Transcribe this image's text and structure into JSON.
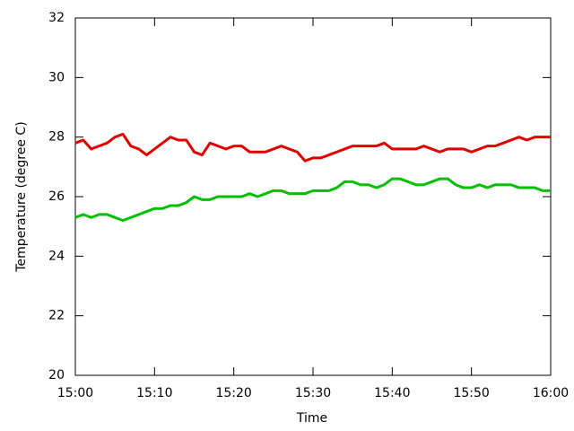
{
  "chart_data": {
    "type": "line",
    "x_label": "Time",
    "y_label": "Temperature (degree C)",
    "x": [
      "15:00",
      "15:01",
      "15:02",
      "15:03",
      "15:04",
      "15:05",
      "15:06",
      "15:07",
      "15:08",
      "15:09",
      "15:10",
      "15:11",
      "15:12",
      "15:13",
      "15:14",
      "15:15",
      "15:16",
      "15:17",
      "15:18",
      "15:19",
      "15:20",
      "15:21",
      "15:22",
      "15:23",
      "15:24",
      "15:25",
      "15:26",
      "15:27",
      "15:28",
      "15:29",
      "15:30",
      "15:31",
      "15:32",
      "15:33",
      "15:34",
      "15:35",
      "15:36",
      "15:37",
      "15:38",
      "15:39",
      "15:40",
      "15:41",
      "15:42",
      "15:43",
      "15:44",
      "15:45",
      "15:46",
      "15:47",
      "15:48",
      "15:49",
      "15:50",
      "15:51",
      "15:52",
      "15:53",
      "15:54",
      "15:55",
      "15:56",
      "15:57",
      "15:58",
      "15:59",
      "16:00"
    ],
    "series": [
      {
        "color": "#e00000",
        "values": [
          27.8,
          27.9,
          27.6,
          27.7,
          27.8,
          28.0,
          28.1,
          27.7,
          27.6,
          27.4,
          27.6,
          27.8,
          28.0,
          27.9,
          27.9,
          27.5,
          27.4,
          27.8,
          27.7,
          27.6,
          27.7,
          27.7,
          27.5,
          27.5,
          27.5,
          27.6,
          27.7,
          27.6,
          27.5,
          27.2,
          27.3,
          27.3,
          27.4,
          27.5,
          27.6,
          27.7,
          27.7,
          27.7,
          27.7,
          27.8,
          27.6,
          27.6,
          27.6,
          27.6,
          27.7,
          27.6,
          27.5,
          27.6,
          27.6,
          27.6,
          27.5,
          27.6,
          27.7,
          27.7,
          27.8,
          27.9,
          28.0,
          27.9,
          28.0,
          28.0,
          28.0
        ]
      },
      {
        "color": "#00c000",
        "values": [
          25.3,
          25.4,
          25.3,
          25.4,
          25.4,
          25.3,
          25.2,
          25.3,
          25.4,
          25.5,
          25.6,
          25.6,
          25.7,
          25.7,
          25.8,
          26.0,
          25.9,
          25.9,
          26.0,
          26.0,
          26.0,
          26.0,
          26.1,
          26.0,
          26.1,
          26.2,
          26.2,
          26.1,
          26.1,
          26.1,
          26.2,
          26.2,
          26.2,
          26.3,
          26.5,
          26.5,
          26.4,
          26.4,
          26.3,
          26.4,
          26.6,
          26.6,
          26.5,
          26.4,
          26.4,
          26.5,
          26.6,
          26.6,
          26.4,
          26.3,
          26.3,
          26.4,
          26.3,
          26.4,
          26.4,
          26.4,
          26.3,
          26.3,
          26.3,
          26.2,
          26.2
        ]
      }
    ],
    "xlim": [
      "15:00",
      "16:00"
    ],
    "xticks": [
      "15:00",
      "15:10",
      "15:20",
      "15:30",
      "15:40",
      "15:50",
      "16:00"
    ],
    "ylim": [
      20,
      32
    ],
    "yticks": [
      20,
      22,
      24,
      26,
      28,
      30,
      32
    ],
    "grid": false
  }
}
